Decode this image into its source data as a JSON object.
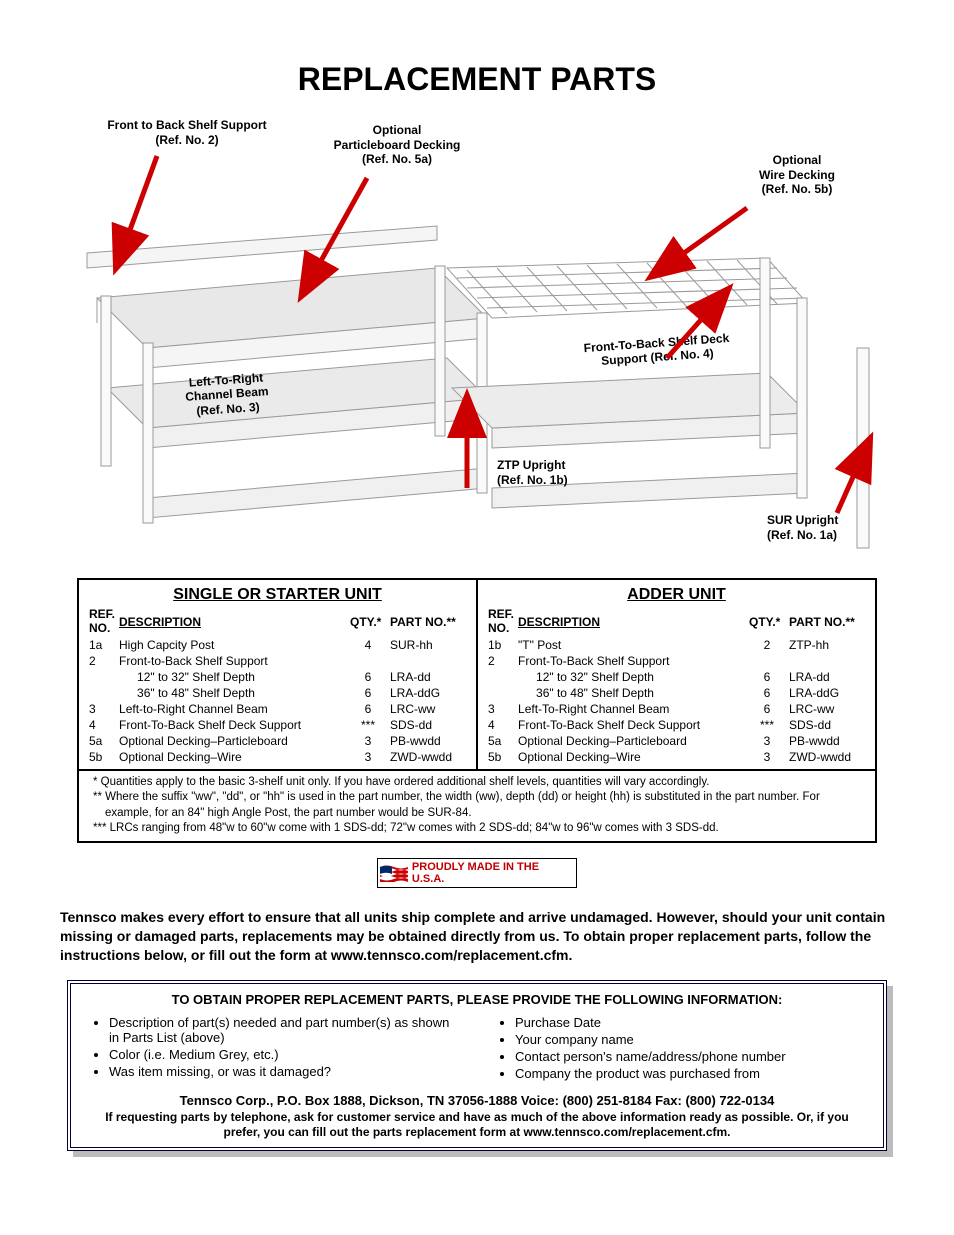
{
  "title": "REPLACEMENT PARTS",
  "diagram": {
    "callouts": {
      "fb_support": {
        "l1": "Front to Back Shelf Support",
        "l2": "(Ref. No. 2)"
      },
      "particleboard": {
        "l1": "Optional",
        "l2": "Particleboard Decking",
        "l3": "(Ref. No. 5a)"
      },
      "wire": {
        "l1": "Optional",
        "l2": "Wire Decking",
        "l3": "(Ref. No. 5b)"
      },
      "lr_channel": {
        "l1": "Left-To-Right",
        "l2": "Channel Beam",
        "l3": "(Ref. No. 3)"
      },
      "fb_deck": {
        "l1": "Front-To-Back Shelf Deck",
        "l2": "Support (Ref. No. 4)"
      },
      "ztp": {
        "l1": "ZTP Upright",
        "l2": "(Ref. No. 1b)"
      },
      "sur": {
        "l1": "SUR Upright",
        "l2": "(Ref. No. 1a)"
      }
    },
    "arrow_color": "#cc0000",
    "line_color": "#b0b0b0"
  },
  "tables": {
    "left": {
      "title": "SINGLE OR STARTER UNIT",
      "headers": {
        "ref": "REF. NO.",
        "desc": "DESCRIPTION",
        "qty": "QTY.*",
        "part": "PART NO.**"
      },
      "rows": [
        {
          "ref": "1a",
          "desc": "High Capcity Post",
          "qty": "4",
          "part": "SUR-hh"
        },
        {
          "ref": "2",
          "desc": "Front-to-Back Shelf Support",
          "qty": "",
          "part": ""
        },
        {
          "ref": "",
          "desc": "12\" to 32\" Shelf Depth",
          "indent": true,
          "qty": "6",
          "part": "LRA-dd"
        },
        {
          "ref": "",
          "desc": "36\" to 48\" Shelf Depth",
          "indent": true,
          "qty": "6",
          "part": "LRA-ddG"
        },
        {
          "ref": "3",
          "desc": "Left-to-Right Channel Beam",
          "qty": "6",
          "part": "LRC-ww"
        },
        {
          "ref": "4",
          "desc": "Front-To-Back Shelf Deck Support",
          "qty": "***",
          "part": "SDS-dd"
        },
        {
          "ref": "5a",
          "desc": "Optional Decking–Particleboard",
          "qty": "3",
          "part": "PB-wwdd"
        },
        {
          "ref": "5b",
          "desc": "Optional Decking–Wire",
          "qty": "3",
          "part": "ZWD-wwdd"
        }
      ]
    },
    "right": {
      "title": "ADDER UNIT",
      "headers": {
        "ref": "REF. NO.",
        "desc": "DESCRIPTION",
        "qty": "QTY.*",
        "part": "PART NO.**"
      },
      "rows": [
        {
          "ref": "1b",
          "desc": "\"T\" Post",
          "qty": "2",
          "part": "ZTP-hh"
        },
        {
          "ref": "2",
          "desc": "Front-To-Back Shelf Support",
          "qty": "",
          "part": ""
        },
        {
          "ref": "",
          "desc": "12\" to 32\" Shelf Depth",
          "indent": true,
          "qty": "6",
          "part": "LRA-dd"
        },
        {
          "ref": "",
          "desc": "36\" to 48\" Shelf Depth",
          "indent": true,
          "qty": "6",
          "part": "LRA-ddG"
        },
        {
          "ref": "3",
          "desc": "Left-To-Right Channel Beam",
          "qty": "6",
          "part": "LRC-ww"
        },
        {
          "ref": "4",
          "desc": "Front-To-Back Shelf Deck Support",
          "qty": "***",
          "part": "SDS-dd"
        },
        {
          "ref": "5a",
          "desc": "Optional Decking–Particleboard",
          "qty": "3",
          "part": "PB-wwdd"
        },
        {
          "ref": "5b",
          "desc": "Optional Decking–Wire",
          "qty": "3",
          "part": "ZWD-wwdd"
        }
      ]
    },
    "footnotes": [
      "* Quantities apply to the basic 3-shelf unit only. If you have ordered additional shelf levels, quantities will vary accordingly.",
      "** Where the suffix \"ww\", \"dd\", or \"hh\" is used in the part number, the width (ww), depth (dd) or height (hh) is substituted in the part number. For example, for an 84\" high Angle Post, the part number would be SUR-84.",
      "*** LRCs ranging from 48\"w to 60\"w come with 1 SDS-dd; 72\"w comes with 2 SDS-dd; 84\"w to 96\"w comes with 3 SDS-dd."
    ]
  },
  "usa_label": "PROUDLY MADE IN THE U.S.A.",
  "body_text": "Tennsco makes every effort to ensure that all units ship complete and arrive undamaged. However, should your unit contain missing or damaged parts, replacements may be obtained directly from us. To obtain proper replacement parts, follow the instructions below, or fill out the form at www.tennsco.com/replacement.cfm.",
  "info_box": {
    "heading": "TO OBTAIN PROPER REPLACEMENT PARTS, PLEASE PROVIDE THE FOLLOWING INFORMATION:",
    "col1": [
      "Description of part(s) needed and part number(s) as shown in Parts List (above)",
      "Color (i.e. Medium Grey, etc.)",
      "Was item missing, or was it damaged?"
    ],
    "col2": [
      "Purchase Date",
      "Your company name",
      "Contact person's name/address/phone number",
      "Company the product was purchased from"
    ],
    "contact": "Tennsco Corp., P.O. Box 1888, Dickson, TN 37056-1888      Voice: (800) 251-8184         Fax: (800) 722-0134",
    "note": "If requesting parts by telephone, ask for customer service and have as much of the above information ready as possible. Or, if you prefer, you can fill out the parts replacement form at www.tennsco.com/replacement.cfm."
  }
}
